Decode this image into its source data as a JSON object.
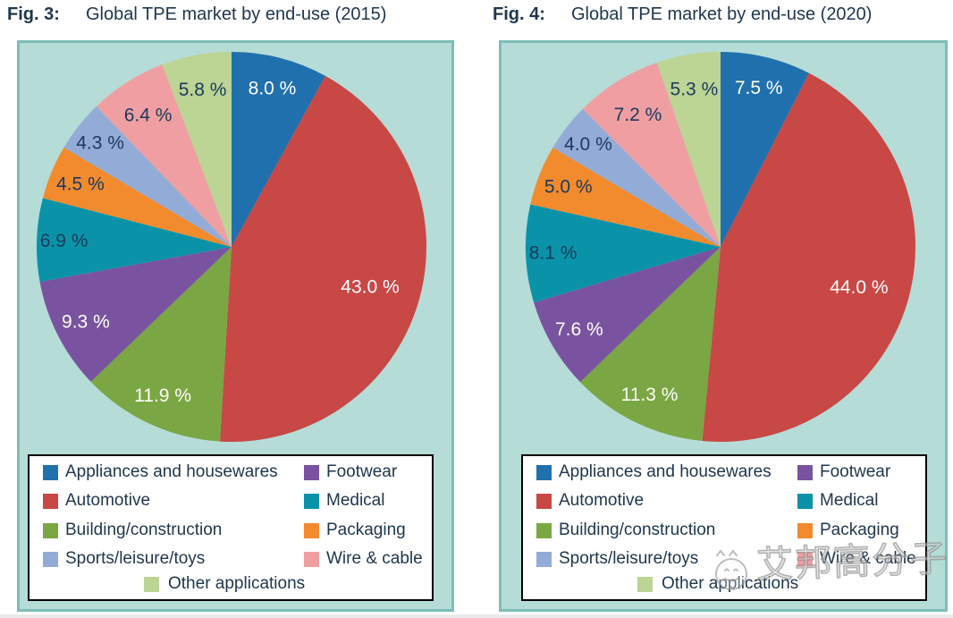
{
  "colors": {
    "panel_fill": "#B6DCD7",
    "panel_border": "#7EBEB7",
    "title_text": "#20374D",
    "legend_text": "#20374D",
    "slice_label_dark": "#1A3A5C",
    "slice_label_light": "#FFFFFF",
    "legend_box_background": "#FFFFFF",
    "legend_box_border": "#000000",
    "category_colors": [
      "#2070AE",
      "#C84845",
      "#7AA743",
      "#7A53A0",
      "#0A93A8",
      "#F28A2E",
      "#93ACD7",
      "#EF9FA2",
      "#BCD494"
    ]
  },
  "categories": [
    "Appliances and housewares",
    "Automotive",
    "Building/construction",
    "Footwear",
    "Medical",
    "Packaging",
    "Sports/leisure/toys",
    "Wire & cable",
    "Other applications"
  ],
  "chart_data": [
    {
      "type": "pie",
      "title_prefix": "Fig. 3:",
      "title": "Global TPE market by end-use (2015)",
      "categories": [
        "Appliances and housewares",
        "Automotive",
        "Building/construction",
        "Footwear",
        "Medical",
        "Packaging",
        "Sports/leisure/toys",
        "Wire & cable",
        "Other applications"
      ],
      "values": [
        8.0,
        43.0,
        11.9,
        9.3,
        6.9,
        4.5,
        4.3,
        6.4,
        5.8
      ],
      "labels": [
        "8.0 %",
        "43.0 %",
        "11.9 %",
        "9.3 %",
        "6.9 %",
        "4.5 %",
        "4.3 %",
        "6.4 %",
        "5.8 %"
      ],
      "label_colors": [
        "light",
        "light",
        "light",
        "light",
        "dark",
        "dark",
        "dark",
        "dark",
        "dark"
      ],
      "start_angle_deg": 0,
      "direction": "clockwise",
      "legend_position": "bottom"
    },
    {
      "type": "pie",
      "title_prefix": "Fig. 4:",
      "title": "Global TPE market by end-use (2020)",
      "categories": [
        "Appliances and housewares",
        "Automotive",
        "Building/construction",
        "Footwear",
        "Medical",
        "Packaging",
        "Sports/leisure/toys",
        "Wire & cable",
        "Other applications"
      ],
      "values": [
        7.5,
        44.0,
        11.3,
        7.6,
        8.1,
        5.0,
        4.0,
        7.2,
        5.3
      ],
      "labels": [
        "7.5 %",
        "44.0 %",
        "11.3 %",
        "7.6 %",
        "8.1 %",
        "5.0 %",
        "4.0 %",
        "7.2 %",
        "5.3 %"
      ],
      "label_colors": [
        "light",
        "light",
        "light",
        "light",
        "dark",
        "dark",
        "dark",
        "dark",
        "dark"
      ],
      "start_angle_deg": 0,
      "direction": "clockwise",
      "legend_position": "bottom"
    }
  ],
  "legend": {
    "left_column": [
      "Appliances and housewares",
      "Automotive",
      "Building/construction",
      "Sports/leisure/toys"
    ],
    "right_column": [
      "Footwear",
      "Medical",
      "Packaging",
      "Wire & cable"
    ],
    "bottom_row": [
      "Other applications"
    ]
  },
  "watermark": {
    "text": "艾邦高分子",
    "icon": "smiley-face-logo"
  }
}
